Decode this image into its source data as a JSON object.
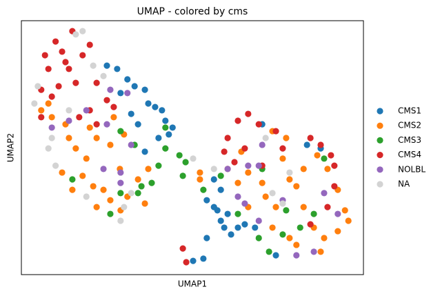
{
  "chart_data": {
    "type": "scatter",
    "title": "UMAP - colored by cms",
    "x_label": "UMAP1",
    "y_label": "UMAP2",
    "xlim": [
      0,
      10
    ],
    "ylim": [
      0,
      10
    ],
    "legend": "outside-right",
    "series": [
      {
        "name": "CMS1",
        "color": "#1f77b4",
        "x": [
          2.5,
          2.8,
          3.1,
          3.31,
          3.61,
          3.71,
          3.91,
          4.11,
          4.21,
          4.42,
          3.21,
          3.41,
          2.9,
          4.01,
          4.31,
          3.61,
          5.42,
          5.63,
          5.83,
          5.93,
          6.13,
          6.33,
          5.42,
          5.32,
          5.02,
          5.73,
          6.03,
          6.53,
          6.83,
          7.04,
          7.44,
          8.35,
          8.75,
          5.63,
          5.83
        ],
        "y": [
          8.23,
          8.1,
          7.69,
          7.42,
          7.28,
          6.74,
          6.6,
          6.47,
          6.06,
          5.79,
          6.33,
          5.92,
          7.15,
          5.38,
          5.52,
          4.84,
          2.93,
          2.66,
          2.12,
          1.85,
          1.58,
          1.85,
          1.44,
          0.63,
          0.54,
          2.53,
          2.39,
          1.98,
          1.85,
          5.92,
          0.76,
          5.11,
          4.97,
          3.75,
          3.34
        ]
      },
      {
        "name": "CMS2",
        "color": "#ff7f0e",
        "x": [
          0.58,
          0.89,
          1.29,
          1.59,
          1.9,
          2.2,
          2.6,
          2.88,
          2.4,
          2.1,
          1.49,
          1.79,
          2.6,
          3.1,
          3.41,
          3.71,
          3.61,
          2.9,
          2.2,
          1.19,
          1.39,
          3.0,
          2.0,
          2.7,
          0.79,
          5.22,
          6.33,
          6.63,
          7.04,
          7.34,
          7.64,
          7.84,
          8.04,
          8.25,
          8.55,
          8.85,
          9.25,
          9.46,
          9.25,
          8.95,
          8.65,
          7.44,
          7.14,
          7.34,
          7.84,
          8.04,
          6.63,
          6.43,
          7.74,
          8.25,
          9.56,
          8.75,
          6.03,
          5.22
        ],
        "y": [
          6.47,
          6.2,
          5.92,
          4.97,
          4.57,
          5.38,
          5.11,
          4.16,
          3.34,
          3.48,
          3.34,
          3.89,
          2.93,
          3.07,
          3.75,
          4.16,
          2.8,
          2.53,
          2.66,
          4.02,
          5.38,
          5.52,
          5.79,
          6.2,
          6.74,
          4.02,
          3.61,
          4.02,
          3.61,
          5.65,
          4.57,
          3.75,
          3.48,
          2.66,
          1.85,
          1.44,
          1.71,
          2.53,
          3.34,
          4.16,
          4.7,
          2.66,
          3.07,
          1.85,
          1.44,
          1.17,
          2.66,
          4.84,
          5.38,
          4.16,
          2.12,
          0.9,
          4.16,
          3.75
        ]
      },
      {
        "name": "CMS3",
        "color": "#2ca02c",
        "x": [
          2.9,
          3.31,
          4.21,
          4.62,
          4.8,
          4.21,
          4.01,
          3.81,
          3.51,
          2.9,
          2.6,
          1.49,
          4.72,
          3.41,
          5.32,
          5.83,
          6.33,
          6.94,
          7.24,
          7.04,
          7.74,
          8.15,
          8.55,
          7.64,
          8.85
        ],
        "y": [
          5.65,
          5.11,
          5.79,
          4.7,
          4.43,
          4.97,
          4.29,
          3.61,
          3.48,
          3.21,
          2.39,
          3.75,
          3.89,
          3.21,
          3.34,
          3.89,
          2.39,
          1.44,
          0.9,
          4.16,
          2.53,
          1.85,
          2.39,
          1.58,
          4.57
        ]
      },
      {
        "name": "CMS4",
        "color": "#d62728",
        "x": [
          1.0,
          1.49,
          1.19,
          0.79,
          1.39,
          1.79,
          2.0,
          0.58,
          1.09,
          1.59,
          2.2,
          2.5,
          0.89,
          2.0,
          2.7,
          1.69,
          2.2,
          0.58,
          1.29,
          0.69,
          6.33,
          6.63,
          6.94,
          7.44,
          6.03,
          5.93,
          6.53,
          7.04,
          7.64,
          8.45,
          8.75,
          9.05,
          9.15,
          9.15,
          8.95,
          8.45,
          4.72,
          4.82,
          6.23
        ],
        "y": [
          9.18,
          9.59,
          8.78,
          8.1,
          8.1,
          8.64,
          9.05,
          7.28,
          7.42,
          7.55,
          7.55,
          6.87,
          7.01,
          6.47,
          6.6,
          6.2,
          5.92,
          6.2,
          8.37,
          8.64,
          6.06,
          6.33,
          5.92,
          5.65,
          5.38,
          4.84,
          4.97,
          4.29,
          4.97,
          5.38,
          5.11,
          4.7,
          4.29,
          3.48,
          2.66,
          1.98,
          1.03,
          0.49,
          4.43
        ]
      },
      {
        "name": "NOLBL",
        "color": "#9467bd",
        "x": [
          0.89,
          1.39,
          1.9,
          2.5,
          3.21,
          3.1,
          2.6,
          2.4,
          2.9,
          2.9,
          6.03,
          6.33,
          6.94,
          6.53,
          7.04,
          6.63,
          8.04,
          8.55,
          8.85,
          9.25,
          6.94,
          7.64
        ],
        "y": [
          5.79,
          6.06,
          6.47,
          5.92,
          5.11,
          7.15,
          7.28,
          4.16,
          4.02,
          3.61,
          4.16,
          3.07,
          2.12,
          2.8,
          5.11,
          4.29,
          0.76,
          0.9,
          3.21,
          2.39,
          4.29,
          2.93
        ]
      },
      {
        "name": "NA",
        "color": "#d3d3d3",
        "x": [
          0.48,
          0.38,
          1.59,
          1.79,
          2.4,
          0.89,
          0.79,
          1.0,
          1.9,
          3.0,
          2.9,
          3.21,
          1.39,
          5.02,
          2.1,
          7.64,
          7.34,
          7.84,
          7.14,
          5.63
        ],
        "y": [
          7.42,
          6.74,
          9.46,
          9.59,
          7.82,
          5.38,
          4.97,
          4.29,
          3.07,
          2.66,
          2.12,
          3.21,
          6.47,
          4.57,
          8.23,
          2.8,
          3.21,
          4.02,
          5.38,
          4.16
        ]
      }
    ]
  }
}
